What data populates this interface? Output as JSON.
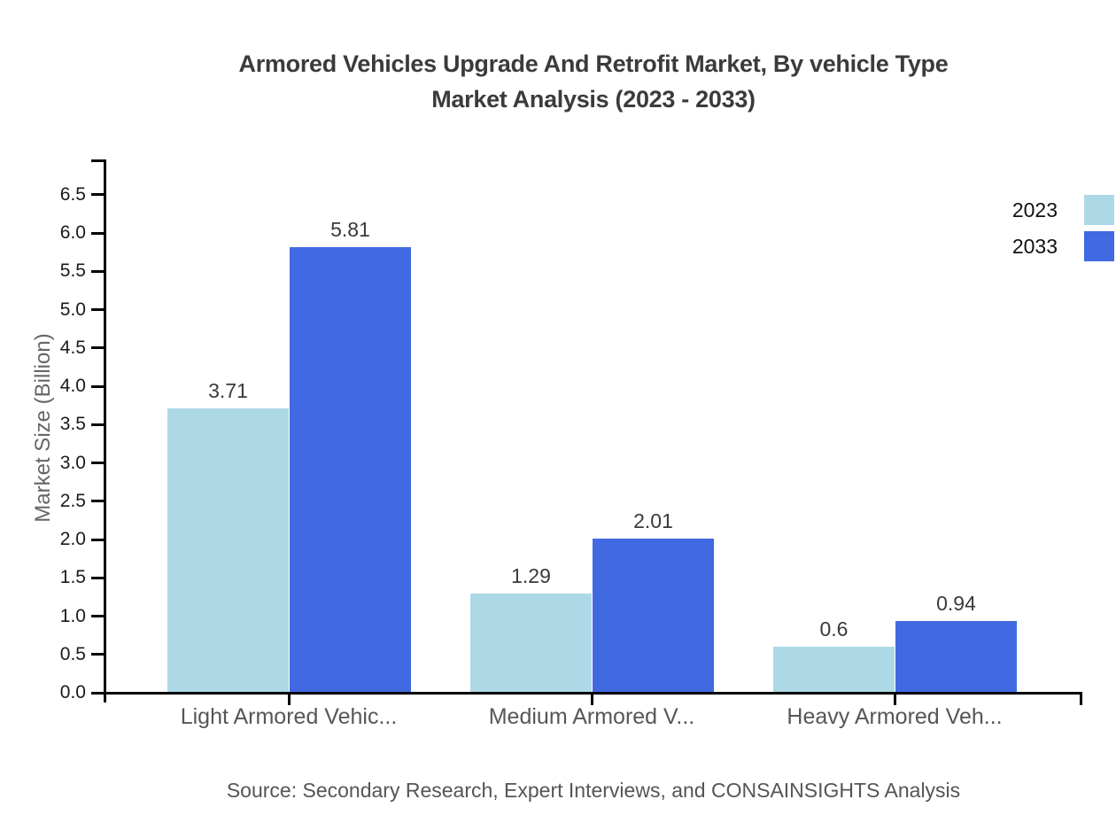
{
  "page": {
    "background": "#ffffff"
  },
  "chart_data": {
    "type": "bar",
    "title": "Armored Vehicles Upgrade And Retrofit Market, By vehicle Type Market Analysis (2023 - 2033)",
    "title_lines": [
      "Armored Vehicles Upgrade And Retrofit Market, By vehicle Type",
      "Market Analysis (2023 - 2033)"
    ],
    "categories": [
      "Light Armored Vehic...",
      "Medium Armored V...",
      "Heavy Armored Veh..."
    ],
    "series": [
      {
        "name": "2023",
        "color": "#ADD8E6",
        "values": [
          3.71,
          1.29,
          0.6
        ]
      },
      {
        "name": "2033",
        "color": "#4169E1",
        "values": [
          5.81,
          2.01,
          0.94
        ]
      }
    ],
    "bar_value_labels": [
      [
        "3.71",
        "1.29",
        "0.6"
      ],
      [
        "5.81",
        "2.01",
        "0.94"
      ]
    ],
    "xlabel": "",
    "ylabel": "Market Size (Billion)",
    "ylim": [
      0,
      6.96
    ],
    "ytick_labels": [
      "0.0",
      "0.5",
      "1.0",
      "1.5",
      "2.0",
      "2.5",
      "3.0",
      "3.5",
      "4.0",
      "4.5",
      "5.0",
      "5.5",
      "6.0",
      "6.5"
    ],
    "grid": false,
    "legend_position": "top-right",
    "source": "Source: Secondary Research, Expert Interviews, and CONSAINSIGHTS Analysis",
    "colors": {
      "axis": "#000000",
      "title_text": "#3b3b3b",
      "tick_label_text": "#1a1a1a",
      "category_label_text": "#565656",
      "value_label_text": "#3a3a3a",
      "muted_text": "#555555",
      "series_2023": "#ADD8E6",
      "series_2033": "#4169E1"
    }
  }
}
